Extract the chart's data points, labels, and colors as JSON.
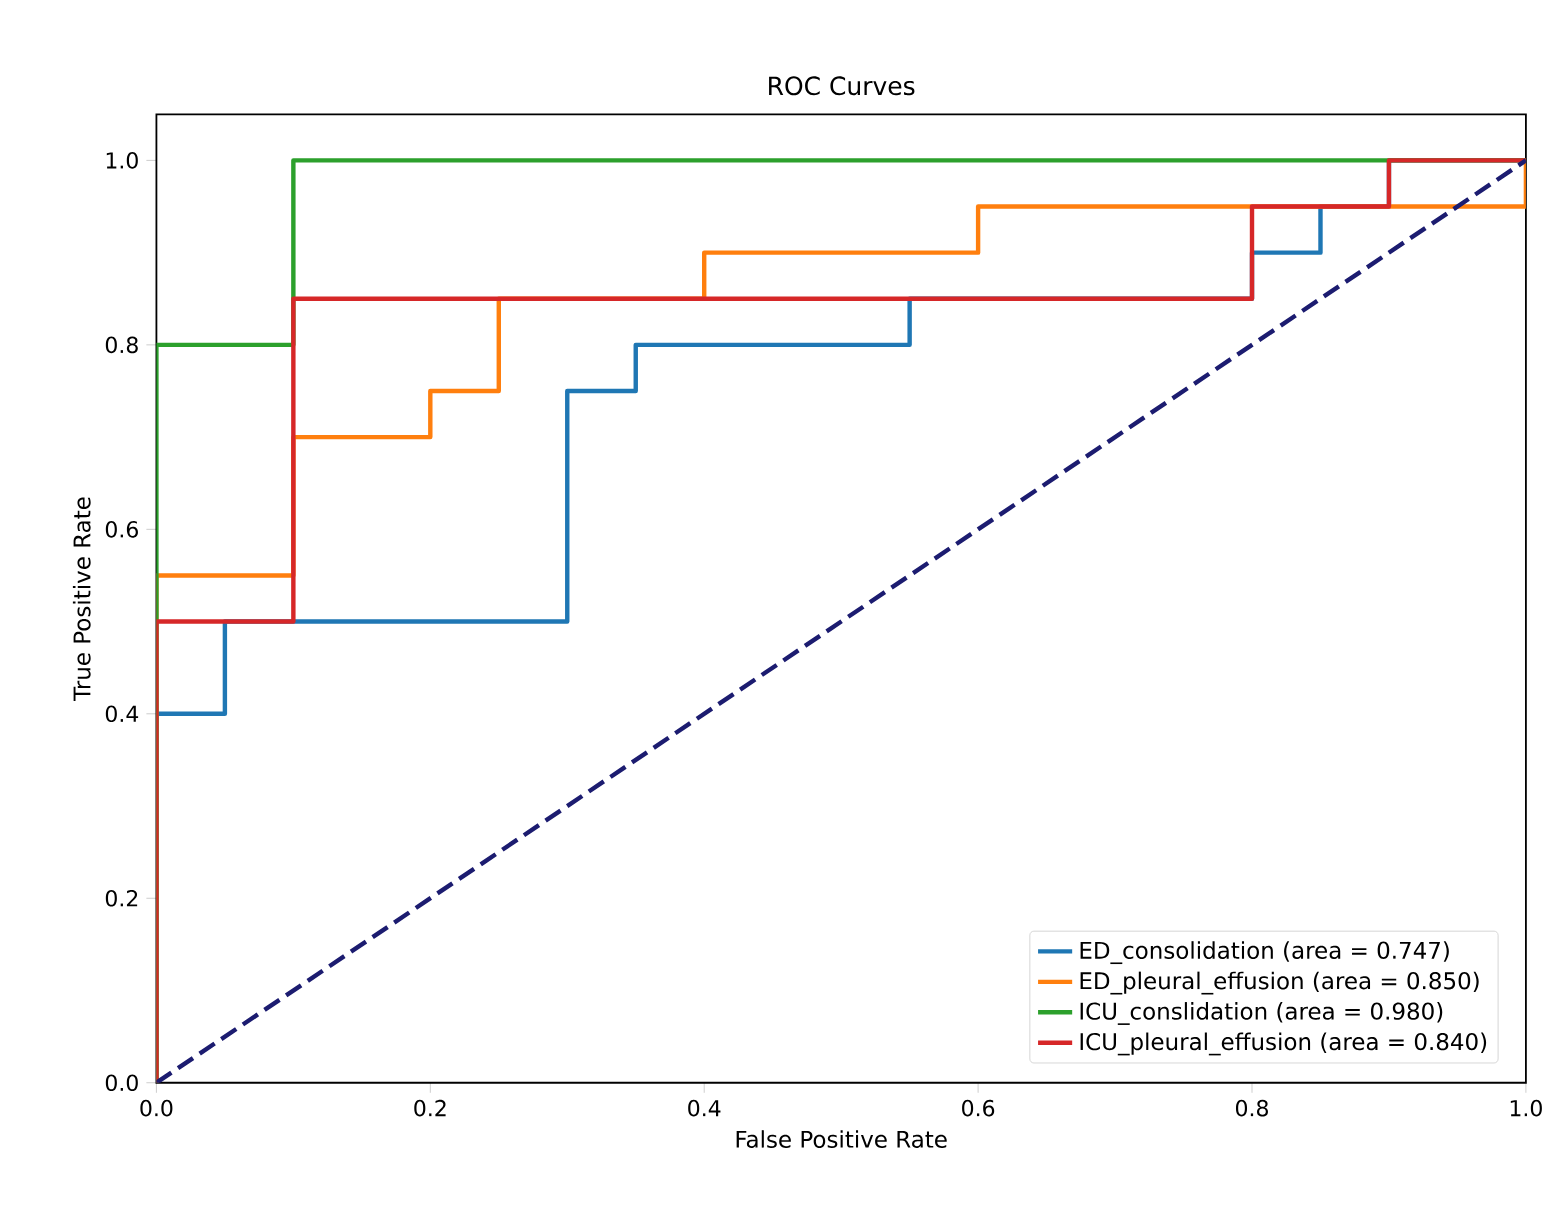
{
  "chart_data": {
    "type": "line",
    "title": "ROC Curves",
    "xlabel": "False Positive Rate",
    "ylabel": "True Positive Rate",
    "xlim": [
      0,
      1
    ],
    "ylim": [
      0,
      1.05
    ],
    "xticks": [
      {
        "value": 0,
        "label": "0.0"
      },
      0.2,
      0.4,
      0.6,
      0.8,
      {
        "value": 1,
        "label": "1.0"
      }
    ],
    "yticks": [
      {
        "value": 0,
        "label": "0.0"
      },
      0.2,
      0.4,
      0.6,
      0.8,
      {
        "value": 1,
        "label": "1.0"
      }
    ],
    "legend": "bottom right",
    "grid": false,
    "marker": "none",
    "series": [
      {
        "name": "ED_consolidation (area = 0.747)",
        "color": "#1f77b4",
        "x": [
          0,
          0,
          0.05,
          0.05,
          0.3,
          0.3,
          0.35,
          0.35,
          0.55,
          0.55,
          0.8,
          0.8,
          0.85,
          0.85,
          0.9,
          0.9,
          1
        ],
        "values": [
          0,
          0.4,
          0.4,
          0.5,
          0.5,
          0.75,
          0.75,
          0.8,
          0.8,
          0.85,
          0.85,
          0.9,
          0.9,
          0.95,
          0.95,
          1,
          1
        ]
      },
      {
        "name": "ED_pleural_effusion (area = 0.850)",
        "color": "#ff7f0e",
        "x": [
          0,
          0,
          0.1,
          0.1,
          0.2,
          0.2,
          0.25,
          0.25,
          0.4,
          0.4,
          0.6,
          0.6,
          1,
          1
        ],
        "values": [
          0,
          0.55,
          0.55,
          0.7,
          0.7,
          0.75,
          0.75,
          0.85,
          0.85,
          0.9,
          0.9,
          0.95,
          0.95,
          1
        ]
      },
      {
        "name": "ICU_conslidation (area = 0.980)",
        "color": "#2ca02c",
        "x": [
          0,
          0,
          0.1,
          0.1,
          1
        ],
        "values": [
          0,
          0.8,
          0.8,
          1,
          1
        ]
      },
      {
        "name": "ICU_pleural_effusion (area = 0.840)",
        "color": "#d62728",
        "x": [
          0,
          0,
          0.1,
          0.1,
          0.8,
          0.8,
          0.9,
          0.9,
          1
        ],
        "values": [
          0,
          0.5,
          0.5,
          0.85,
          0.85,
          0.95,
          0.95,
          1,
          1
        ]
      },
      {
        "color": "#1c1c70",
        "line_style": "dashed",
        "x": [
          0,
          1
        ],
        "values": [
          0,
          1
        ]
      }
    ]
  }
}
